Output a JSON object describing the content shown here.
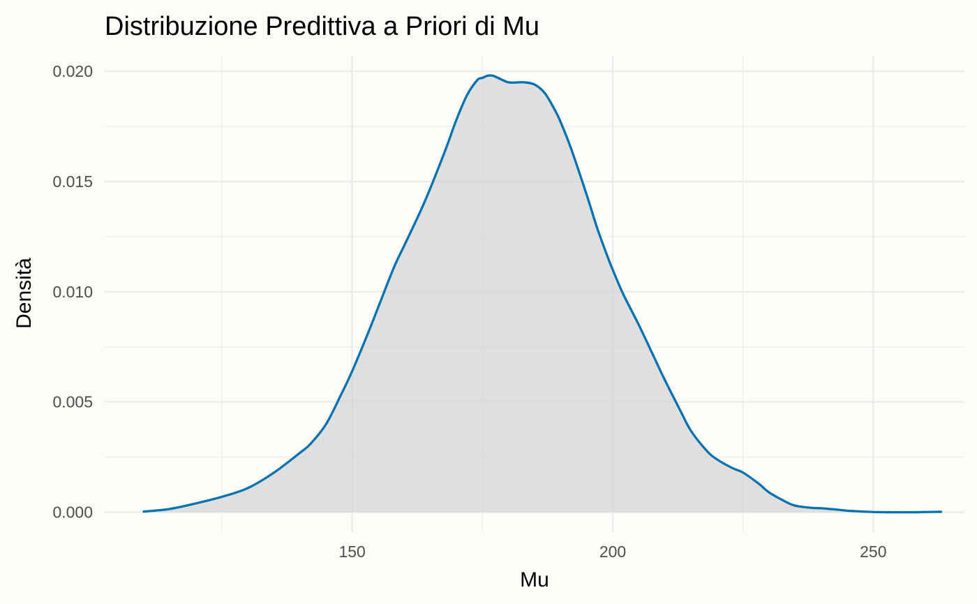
{
  "chart_data": {
    "type": "area",
    "title": "Distribuzione Predittiva a Priori di Mu",
    "xlabel": "Mu",
    "ylabel": "Densità",
    "xlim": [
      102.5,
      267.5
    ],
    "ylim": [
      -0.0009,
      0.0207
    ],
    "x_ticks": [
      150,
      200,
      250
    ],
    "x_tick_labels": [
      "150",
      "200",
      "250"
    ],
    "x_minor_ticks": [
      125,
      175,
      225
    ],
    "y_ticks": [
      0,
      0.005,
      0.01,
      0.015,
      0.02
    ],
    "y_tick_labels": [
      "0.000",
      "0.005",
      "0.010",
      "0.015",
      "0.020"
    ],
    "y_minor_ticks": [
      0.0025,
      0.0075,
      0.0125,
      0.0175
    ],
    "grid": true,
    "legend": "none",
    "series": [
      {
        "x": [
          110,
          115,
          120,
          125,
          130,
          135,
          140,
          142,
          145,
          148,
          150,
          153,
          155,
          158,
          160,
          163,
          165,
          168,
          170,
          172,
          174,
          175,
          176,
          177,
          178,
          180,
          182,
          183,
          185,
          187,
          189,
          190,
          192,
          195,
          197,
          199,
          200,
          202,
          205,
          208,
          210,
          213,
          215,
          218,
          220,
          223,
          225,
          228,
          230,
          233,
          235,
          238,
          240,
          243,
          245,
          248,
          250,
          253,
          255,
          258,
          260,
          263
        ],
        "y": [
          3e-05,
          0.00015,
          0.0004,
          0.0007,
          0.0011,
          0.0018,
          0.0027,
          0.0031,
          0.004,
          0.0054,
          0.0064,
          0.0081,
          0.0093,
          0.0111,
          0.0121,
          0.0136,
          0.0147,
          0.0165,
          0.0178,
          0.0189,
          0.0196,
          0.0197,
          0.0198,
          0.0198,
          0.0197,
          0.0195,
          0.0195,
          0.0195,
          0.0194,
          0.019,
          0.0182,
          0.0177,
          0.0165,
          0.0144,
          0.0129,
          0.0116,
          0.011,
          0.0099,
          0.0085,
          0.007,
          0.006,
          0.0046,
          0.0037,
          0.0028,
          0.0024,
          0.002,
          0.0018,
          0.0013,
          0.0009,
          0.0005,
          0.0003,
          0.0002,
          0.00018,
          0.00012,
          7e-05,
          3e-05,
          1e-05,
          0.0,
          0.0,
          0.0,
          1e-05,
          2e-05
        ]
      }
    ],
    "colors": {
      "line": "#0072b2",
      "fill": "#d3d3d3",
      "background": "#fdfcf9",
      "grid": "#ebebeb"
    }
  }
}
